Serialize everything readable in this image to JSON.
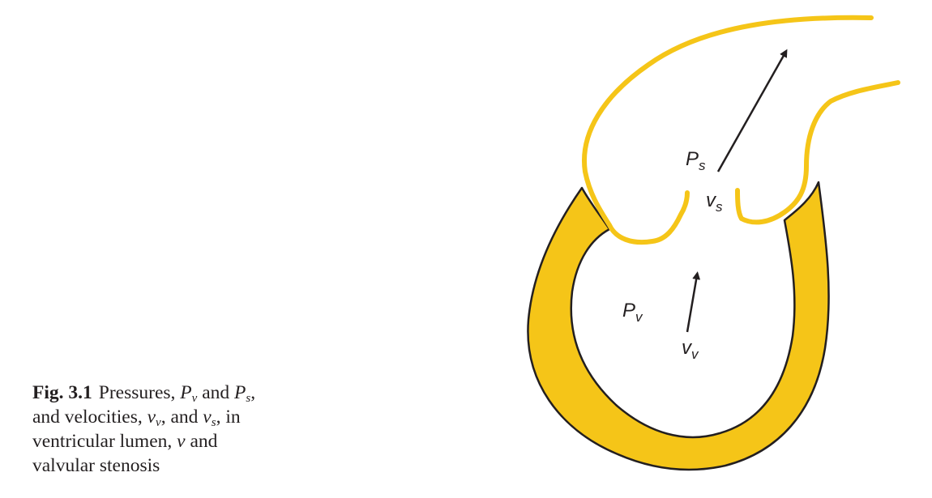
{
  "figure": {
    "colors": {
      "myocardium": "#f5c518",
      "outline": "#231f20",
      "aorta": "#f5c518",
      "text": "#231f20"
    },
    "labels": {
      "ps": {
        "main": "P",
        "sub": "s"
      },
      "vs": {
        "main": "v",
        "sub": "s"
      },
      "pv": {
        "main": "P",
        "sub": "v"
      },
      "vv": {
        "main": "v",
        "sub": "v"
      }
    }
  },
  "caption": {
    "label": "Fig. 3.1",
    "t1": "Pressures, ",
    "pv_main": "P",
    "pv_sub": "v",
    "t2": " and ",
    "ps_main": "P",
    "ps_sub": "s",
    "t3": ", and velocities, ",
    "vv_main": "v",
    "vv_sub": "v",
    "t4": ", and ",
    "vs_main": "v",
    "vs_sub": "s",
    "t5": ", in ventricular lumen, ",
    "v_main": "v",
    "t6": " and valvular stenosis"
  }
}
